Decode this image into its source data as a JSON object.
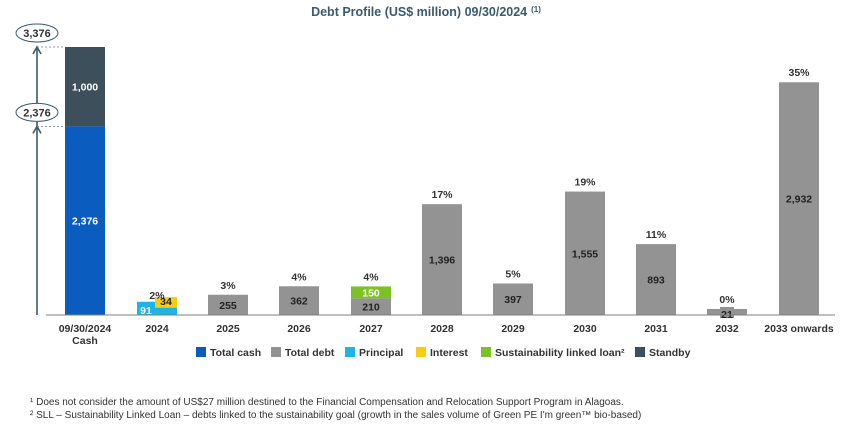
{
  "title": "Debt Profile (US$ million) 09/30/2024",
  "title_sup": "(1)",
  "chart_data": {
    "type": "bar",
    "stacked": true,
    "title": "Debt Profile (US$ million) 09/30/2024 (1)",
    "categories": [
      "09/30/2024 Cash",
      "2024",
      "2025",
      "2026",
      "2027",
      "2028",
      "2029",
      "2030",
      "2031",
      "2032",
      "2033 onwards"
    ],
    "category_lines": [
      [
        "09/30/2024",
        "Cash"
      ],
      [
        "2024"
      ],
      [
        "2025"
      ],
      [
        "2026"
      ],
      [
        "2027"
      ],
      [
        "2028"
      ],
      [
        "2029"
      ],
      [
        "2030"
      ],
      [
        "2031"
      ],
      [
        "2032"
      ],
      [
        "2033 onwards"
      ]
    ],
    "ylim": [
      0,
      3376
    ],
    "series": [
      {
        "name": "Total cash",
        "color": "#0a5cbf",
        "text_color": "#ffffff",
        "values": [
          2376,
          0,
          0,
          0,
          0,
          0,
          0,
          0,
          0,
          0,
          0
        ]
      },
      {
        "name": "Standby",
        "color": "#3e4f5c",
        "text_color": "#ffffff",
        "values": [
          1000,
          0,
          0,
          0,
          0,
          0,
          0,
          0,
          0,
          0,
          0
        ]
      },
      {
        "name": "Total debt",
        "color": "#939393",
        "text_color": "#222222",
        "values": [
          0,
          0,
          255,
          362,
          210,
          1396,
          397,
          1555,
          893,
          21,
          2932
        ]
      },
      {
        "name": "Principal",
        "color": "#1fb4e2",
        "text_color": "#ffffff",
        "values": [
          0,
          91,
          0,
          0,
          0,
          0,
          0,
          0,
          0,
          0,
          0
        ]
      },
      {
        "name": "Interest",
        "color": "#f7cd14",
        "text_color": "#222222",
        "values": [
          0,
          34,
          0,
          0,
          0,
          0,
          0,
          0,
          0,
          0,
          0
        ]
      },
      {
        "name": "Sustainability linked loan²",
        "color": "#7dc224",
        "text_color": "#ffffff",
        "values": [
          0,
          0,
          0,
          0,
          150,
          0,
          0,
          0,
          0,
          0,
          0
        ]
      }
    ],
    "share_labels": [
      "",
      "2%",
      "3%",
      "4%",
      "4%",
      "17%",
      "5%",
      "19%",
      "11%",
      "0%",
      "35%"
    ],
    "legend_order": [
      "Total cash",
      "Total debt",
      "Principal",
      "Interest",
      "Sustainability linked loan²",
      "Standby"
    ],
    "annotations": [
      "3,376",
      "2,376"
    ],
    "annotation_values": [
      3376,
      2376
    ]
  },
  "footnotes": [
    "¹ Does not consider the amount of US$27 million destined to the Financial Compensation and Relocation Support Program in Alagoas.",
    "² SLL – Sustainability Linked Loan – debts linked to the sustainability goal (growth in the sales volume of Green PE I'm green™ bio-based)"
  ]
}
